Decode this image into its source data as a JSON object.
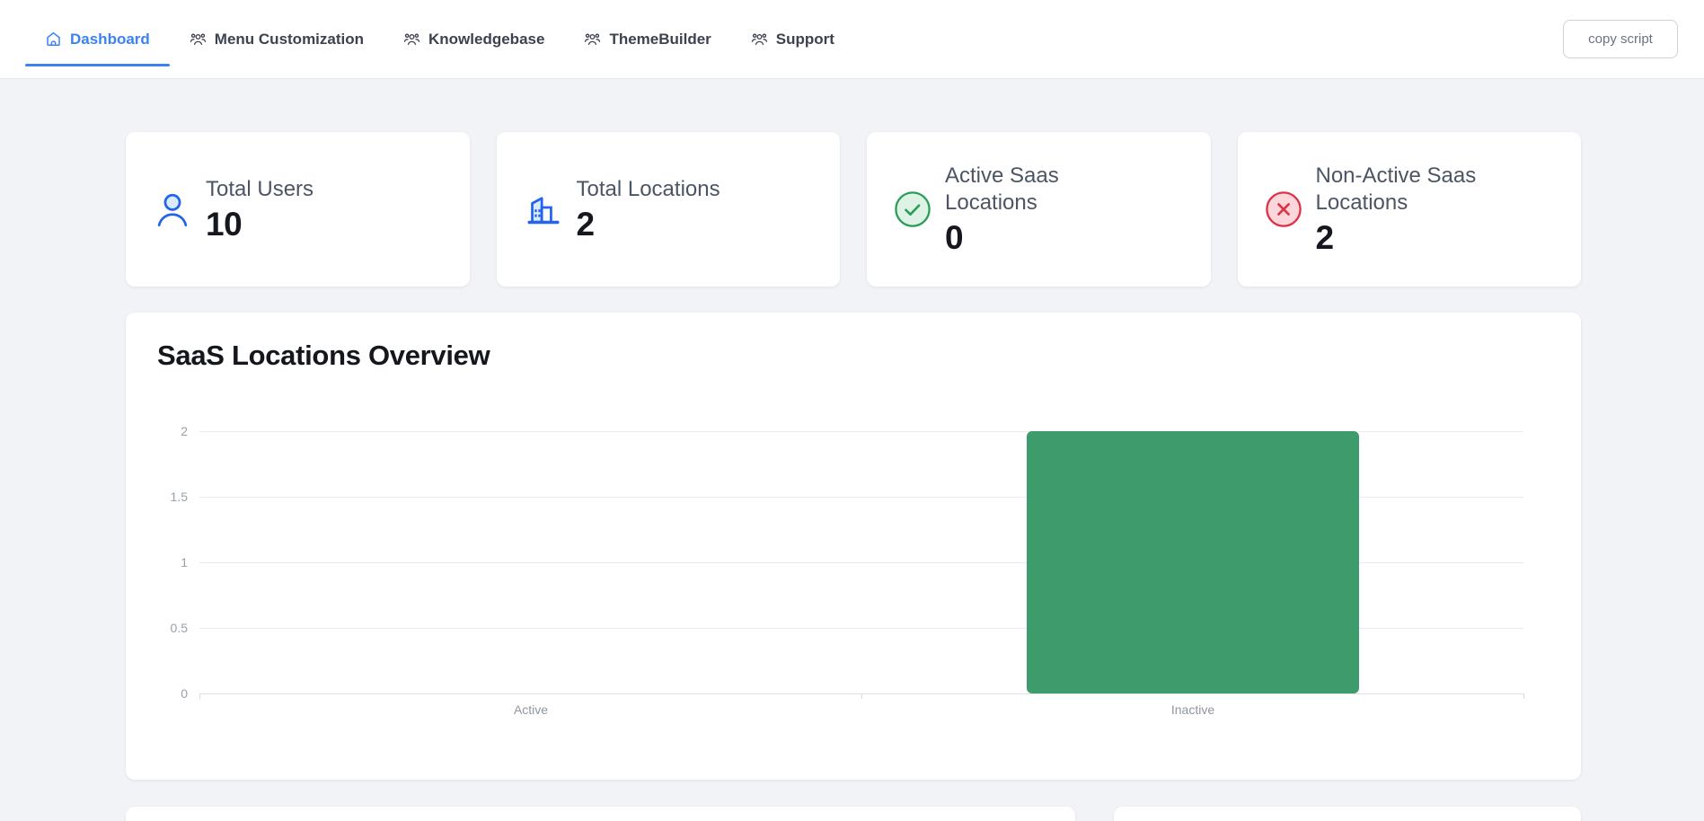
{
  "nav": {
    "tabs": [
      {
        "label": "Dashboard",
        "icon": "home-icon",
        "active": true
      },
      {
        "label": "Menu Customization",
        "icon": "users-icon",
        "active": false
      },
      {
        "label": "Knowledgebase",
        "icon": "users-icon",
        "active": false
      },
      {
        "label": "ThemeBuilder",
        "icon": "users-icon",
        "active": false
      },
      {
        "label": "Support",
        "icon": "users-icon",
        "active": false
      }
    ],
    "copy_script_label": "copy script"
  },
  "stats": [
    {
      "title": "Total Users",
      "value": "10",
      "icon": "user-icon"
    },
    {
      "title": "Total Locations",
      "value": "2",
      "icon": "building-icon"
    },
    {
      "title": "Active Saas Locations",
      "value": "0",
      "icon": "check-circle-icon"
    },
    {
      "title": "Non-Active Saas Locations",
      "value": "2",
      "icon": "x-circle-icon"
    }
  ],
  "chart_data": {
    "type": "bar",
    "title": "SaaS Locations Overview",
    "categories": [
      "Active",
      "Inactive"
    ],
    "values": [
      0,
      2
    ],
    "xlabel": "",
    "ylabel": "",
    "ylim": [
      0,
      2
    ],
    "yticks": [
      0,
      0.5,
      1,
      1.5,
      2
    ],
    "ytick_labels": [
      "0",
      "0.5",
      "1",
      "1.5",
      "2"
    ],
    "grid": true,
    "legend": false,
    "bar_color": "#3e9b6c"
  },
  "colors": {
    "accent_blue": "#3b82f6",
    "icon_blue": "#2463eb",
    "success_green": "#2a9d58",
    "danger_red": "#dc3245",
    "bar_green": "#3e9b6c",
    "page_background": "#f1f3f6"
  }
}
